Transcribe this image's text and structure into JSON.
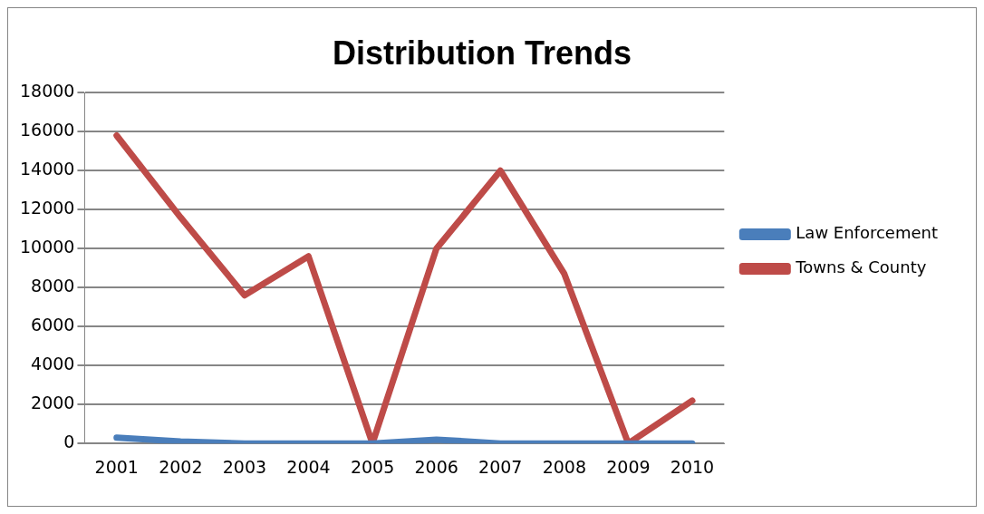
{
  "chart_data": {
    "type": "line",
    "title": "Distribution Trends",
    "categories": [
      "2001",
      "2002",
      "2003",
      "2004",
      "2005",
      "2006",
      "2007",
      "2008",
      "2009",
      "2010"
    ],
    "series": [
      {
        "name": "Law Enforcement",
        "color": "#4a7ebb",
        "values": [
          300,
          100,
          0,
          0,
          0,
          200,
          0,
          0,
          0,
          0
        ]
      },
      {
        "name": "Towns & County",
        "color": "#be4b48",
        "values": [
          15800,
          11600,
          7600,
          9600,
          0,
          10000,
          14000,
          8700,
          0,
          2200
        ]
      }
    ],
    "ylim": [
      0,
      18000
    ],
    "yticks": [
      0,
      2000,
      4000,
      6000,
      8000,
      10000,
      12000,
      14000,
      16000,
      18000
    ],
    "grid": "y",
    "legend": "right",
    "marker": "none"
  }
}
